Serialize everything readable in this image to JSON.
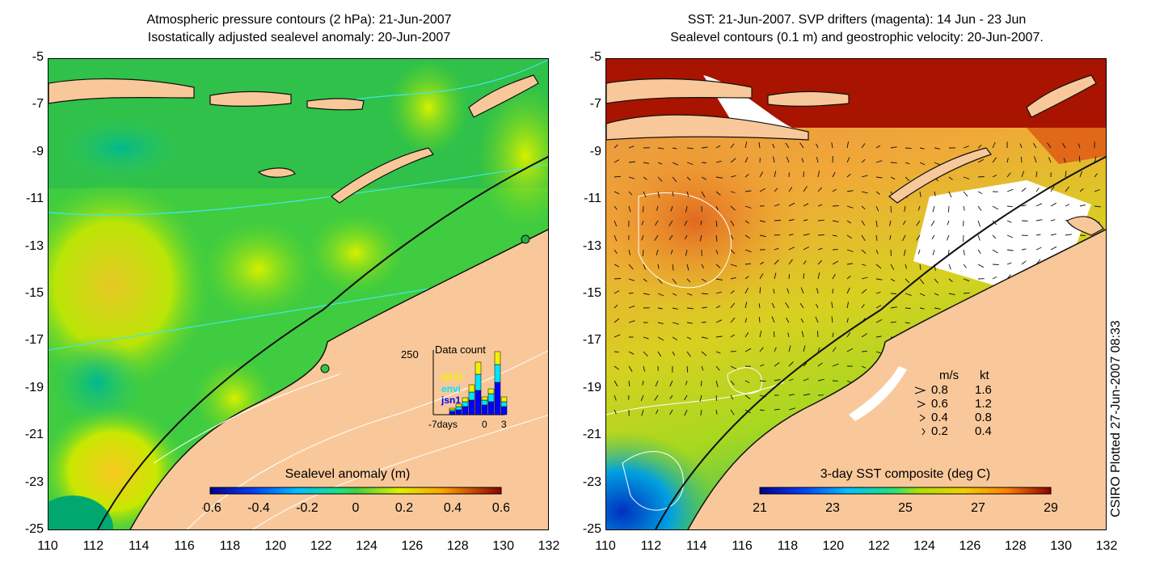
{
  "left_panel": {
    "title_line1": "Atmospheric pressure contours (2 hPa): 21-Jun-2007",
    "title_line2": "Isostatically adjusted sealevel anomaly: 20-Jun-2007",
    "colorbar": {
      "label": "Sealevel anomaly (m)",
      "ticks": [
        "-0.6",
        "-0.4",
        "-0.2",
        "0",
        "0.2",
        "0.4",
        "0.6"
      ]
    },
    "data_count_inset": {
      "title": "Data count",
      "y_max_label": "250",
      "x_labels": [
        "-7days",
        "0",
        "3"
      ],
      "satellites": [
        {
          "name": "GFO",
          "color": "#f2f200"
        },
        {
          "name": "envi",
          "color": "#00e5ff"
        },
        {
          "name": "jsn1",
          "color": "#0000ff"
        }
      ]
    }
  },
  "right_panel": {
    "title_line1": "SST: 21-Jun-2007. SVP drifters (magenta): 14 Jun - 23 Jun",
    "title_line2": "Sealevel contours (0.1 m) and geostrophic velocity: 20-Jun-2007.",
    "colorbar": {
      "label": "3-day SST composite (deg C)",
      "ticks": [
        "21",
        "23",
        "25",
        "27",
        "29"
      ]
    },
    "velocity_legend": {
      "header_ms": "m/s",
      "header_kt": "kt",
      "rows": [
        {
          "ms": "0.8",
          "kt": "1.6"
        },
        {
          "ms": "0.6",
          "kt": "1.2"
        },
        {
          "ms": "0.4",
          "kt": "0.8"
        },
        {
          "ms": "0.2",
          "kt": "0.4"
        }
      ]
    }
  },
  "axes": {
    "y_labels": [
      "-5",
      "-7",
      "-9",
      "-11",
      "-13",
      "-15",
      "-17",
      "-19",
      "-21",
      "-23",
      "-25"
    ],
    "x_labels": [
      "110",
      "112",
      "114",
      "116",
      "118",
      "120",
      "122",
      "124",
      "126",
      "128",
      "130",
      "132"
    ]
  },
  "credit": "CSIRO Plotted 27-Jun-2007 08:33",
  "colors": {
    "land": "#f9c89a",
    "ocean_left": "#3fcf3f",
    "ocean_right_warm": "#f0a030",
    "indonesia_warm": "#a81400",
    "coast_cold": "#0090e0"
  }
}
